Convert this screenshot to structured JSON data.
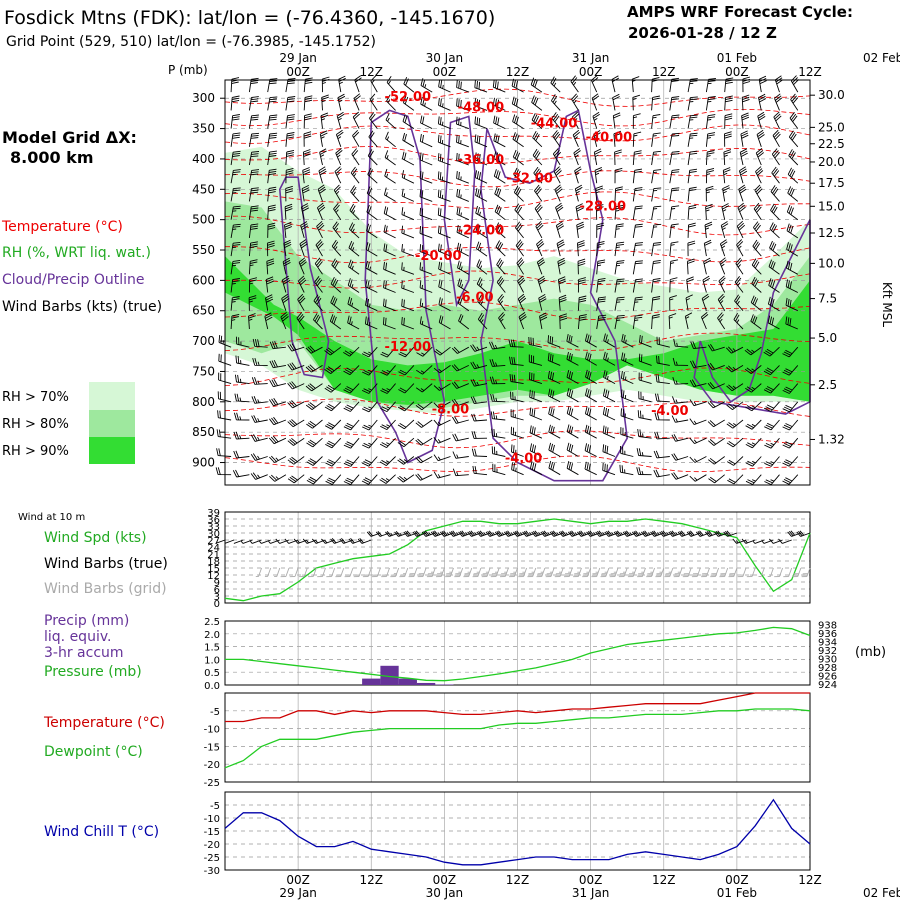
{
  "header": {
    "station": "Fosdick Mtns (FDK):  lat/lon = (-76.4360, -145.1670)",
    "grid_point": "Grid Point (529, 510) lat/lon = (-76.3985, -145.1752)",
    "cycle_title": "AMPS WRF Forecast Cycle:",
    "cycle_value": "2026-01-28 / 12  Z",
    "model_grid_label": "Model Grid ΔX:",
    "model_grid_value": "8.000 km"
  },
  "time_axis": {
    "hour_ticks": [
      "00Z",
      "12Z",
      "00Z",
      "12Z",
      "00Z",
      "12Z",
      "00Z",
      "12Z",
      "00Z",
      "12Z"
    ],
    "date_ticks": [
      "29 Jan",
      "30 Jan",
      "31 Jan",
      "01 Feb",
      "02 Feb"
    ]
  },
  "colors": {
    "temperature": "#ee0000",
    "rh": "#22cc22",
    "cloud": "#663399",
    "wind": "#000000",
    "grid_barbs": "#aaaaaa",
    "precip": "#663399",
    "pressure": "#22cc22",
    "dewpoint": "#22cc22",
    "windchill": "#0000aa",
    "rh70": "#d6f7d6",
    "rh80": "#9ee89e",
    "rh90": "#33dd33"
  },
  "chart_data": [
    {
      "type": "heatmap",
      "panel": "time-height cross section",
      "y_unit": "P (mb)",
      "y_ticks": [
        300,
        350,
        400,
        450,
        500,
        550,
        600,
        650,
        700,
        750,
        800,
        850,
        900
      ],
      "right_unit": "Kft MSL",
      "right_ticks": [
        "30.0",
        "25.0",
        "22.5",
        "20.0",
        "17.5",
        "15.0",
        "12.5",
        "10.0",
        "7.5",
        "5.0",
        "2.5",
        "1.32"
      ],
      "right_tick_pressures": [
        295,
        348,
        375,
        405,
        440,
        478,
        522,
        572,
        630,
        695,
        772,
        862,
        937
      ],
      "legend": {
        "temperature": "Temperature (°C)",
        "rh": "RH (%, WRT liq. wat.)",
        "cloud": "Cloud/Precip Outline",
        "wind": "Wind Barbs (kts) (true)"
      },
      "rh_legend": [
        "RH > 70%",
        "RH > 80%",
        "RH > 90%"
      ],
      "isotherm_labels": [
        {
          "text": "-52.00",
          "hour": 30,
          "p": 298
        },
        {
          "text": "-48.00",
          "hour": 42,
          "p": 315
        },
        {
          "text": "-44.00",
          "hour": 54,
          "p": 342
        },
        {
          "text": "-40.00",
          "hour": 63,
          "p": 365
        },
        {
          "text": "-36.00",
          "hour": 42,
          "p": 402
        },
        {
          "text": "-32.00",
          "hour": 50,
          "p": 432
        },
        {
          "text": "-28.00",
          "hour": 62,
          "p": 478
        },
        {
          "text": "-24.00",
          "hour": 42,
          "p": 518
        },
        {
          "text": "-20.00",
          "hour": 35,
          "p": 560
        },
        {
          "text": "-6.00",
          "hour": 41,
          "p": 628
        },
        {
          "text": "-12.00",
          "hour": 30,
          "p": 710
        },
        {
          "text": "-8.00",
          "hour": 37,
          "p": 813
        },
        {
          "text": "-4.00",
          "hour": 49,
          "p": 893
        },
        {
          "text": "-4.00",
          "hour": 73,
          "p": 815
        }
      ]
    },
    {
      "type": "line",
      "panel": "wind",
      "title": "Wind at 10 m",
      "series_labels": [
        "Wind Spd (kts)",
        "Wind Barbs (true)",
        "Wind Barbs (grid)"
      ],
      "y_ticks": [
        0,
        3,
        6,
        9,
        12,
        15,
        18,
        21,
        24,
        27,
        30,
        33,
        36,
        39
      ],
      "ylim": [
        0,
        39
      ],
      "x_hours": [
        0,
        3,
        6,
        9,
        12,
        15,
        18,
        21,
        24,
        27,
        30,
        33,
        36,
        39,
        42,
        45,
        48,
        51,
        54,
        57,
        60,
        63,
        66,
        69,
        72,
        75,
        78,
        81,
        84,
        87,
        90,
        93,
        96
      ],
      "series": [
        {
          "name": "Wind Spd (kts)",
          "values": [
            2,
            1,
            3,
            4,
            9,
            15,
            17,
            19,
            20,
            21,
            25,
            31,
            33,
            35,
            35,
            34,
            34,
            35,
            36,
            35,
            34,
            35,
            35,
            36,
            35,
            34,
            32,
            30,
            28,
            16,
            5,
            10,
            30
          ]
        }
      ]
    },
    {
      "type": "line",
      "panel": "precip-pressure",
      "series_labels": [
        "Precip (mm)",
        "liq. equiv.",
        "3-hr accum",
        "Pressure (mb)"
      ],
      "y_left_ticks": [
        "0.0",
        "0.5",
        "1.0",
        "1.5",
        "2.0",
        "2.5"
      ],
      "y_right_ticks": [
        "924",
        "926",
        "928",
        "930",
        "932",
        "934",
        "936",
        "938"
      ],
      "right_unit": "(mb)",
      "ylim_left": [
        0,
        2.5
      ],
      "ylim_right": [
        924,
        939
      ],
      "x_hours": [
        0,
        3,
        6,
        9,
        12,
        15,
        18,
        21,
        24,
        27,
        30,
        33,
        36,
        39,
        42,
        45,
        48,
        51,
        54,
        57,
        60,
        63,
        66,
        69,
        72,
        75,
        78,
        81,
        84,
        87,
        90,
        93,
        96
      ],
      "precip_values": [
        0,
        0,
        0,
        0,
        0,
        0,
        0,
        0,
        0.25,
        0.75,
        0.25,
        0.08,
        0.02,
        0,
        0,
        0,
        0,
        0,
        0,
        0,
        0,
        0,
        0,
        0,
        0,
        0,
        0,
        0,
        0,
        0,
        0,
        0,
        0
      ],
      "series": [
        {
          "name": "Pressure (mb)",
          "values": [
            930,
            930,
            929.5,
            929,
            928.5,
            928,
            927.5,
            927,
            926.5,
            926,
            925.6,
            925.1,
            925,
            925.4,
            926,
            926.6,
            927.3,
            928,
            929,
            930,
            931.5,
            932.5,
            933.5,
            934,
            934.5,
            935,
            935.5,
            936,
            936.2,
            936.8,
            937.5,
            937.2,
            935.6
          ]
        }
      ]
    },
    {
      "type": "line",
      "panel": "temperature-dewpoint",
      "series_labels": [
        "Temperature (°C)",
        "Dewpoint (°C)"
      ],
      "y_ticks": [
        -25,
        -20,
        -15,
        -10,
        -5
      ],
      "ylim": [
        -25,
        0
      ],
      "x_hours": [
        0,
        3,
        6,
        9,
        12,
        15,
        18,
        21,
        24,
        27,
        30,
        33,
        36,
        39,
        42,
        45,
        48,
        51,
        54,
        57,
        60,
        63,
        66,
        69,
        72,
        75,
        78,
        81,
        84,
        87,
        90,
        93,
        96
      ],
      "series": [
        {
          "name": "Temperature (°C)",
          "values": [
            -8,
            -8,
            -7,
            -7,
            -5,
            -5,
            -6,
            -5,
            -5.5,
            -5,
            -5,
            -5,
            -5.5,
            -6,
            -6,
            -5.5,
            -5,
            -5.5,
            -5,
            -4.5,
            -4.5,
            -4,
            -3.5,
            -3,
            -3,
            -3,
            -3,
            -2,
            -1,
            0,
            0,
            0,
            0
          ]
        },
        {
          "name": "Dewpoint (°C)",
          "values": [
            -21,
            -19,
            -15,
            -13,
            -13,
            -13,
            -12,
            -11,
            -10.5,
            -10,
            -10,
            -10,
            -10,
            -10,
            -10,
            -9,
            -8.5,
            -8.5,
            -8,
            -7.5,
            -7,
            -7,
            -6.5,
            -6,
            -6,
            -6,
            -5.5,
            -5,
            -5,
            -4.5,
            -4.5,
            -4.5,
            -5
          ]
        }
      ]
    },
    {
      "type": "line",
      "panel": "wind-chill",
      "series_labels": [
        "Wind Chill T (°C)"
      ],
      "y_ticks": [
        -30,
        -25,
        -20,
        -15,
        -10,
        -5
      ],
      "ylim": [
        -30,
        0
      ],
      "x_hours": [
        0,
        3,
        6,
        9,
        12,
        15,
        18,
        21,
        24,
        27,
        30,
        33,
        36,
        39,
        42,
        45,
        48,
        51,
        54,
        57,
        60,
        63,
        66,
        69,
        72,
        75,
        78,
        81,
        84,
        87,
        90,
        93,
        96
      ],
      "series": [
        {
          "name": "Wind Chill T (°C)",
          "values": [
            -14,
            -8,
            -8,
            -11,
            -17,
            -21,
            -21,
            -19,
            -22,
            -23,
            -24,
            -25,
            -27,
            -28,
            -28,
            -27,
            -26,
            -25,
            -25,
            -26,
            -26,
            -26,
            -24,
            -23,
            -24,
            -25,
            -26,
            -24,
            -21,
            -13,
            -3,
            -14,
            -20
          ]
        }
      ]
    }
  ]
}
